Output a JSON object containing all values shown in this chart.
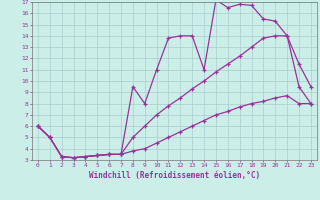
{
  "xlabel": "Windchill (Refroidissement éolien,°C)",
  "bg_color": "#cceee8",
  "line_color": "#993399",
  "grid_color": "#aacccc",
  "xlim": [
    -0.5,
    23.5
  ],
  "ylim": [
    3,
    17
  ],
  "xticks": [
    0,
    1,
    2,
    3,
    4,
    5,
    6,
    7,
    8,
    9,
    10,
    11,
    12,
    13,
    14,
    15,
    16,
    17,
    18,
    19,
    20,
    21,
    22,
    23
  ],
  "yticks": [
    3,
    4,
    5,
    6,
    7,
    8,
    9,
    10,
    11,
    12,
    13,
    14,
    15,
    16,
    17
  ],
  "top_x": [
    0,
    1,
    2,
    3,
    4,
    5,
    6,
    7,
    8,
    9,
    10,
    11,
    12,
    13,
    14,
    15,
    16,
    17,
    18,
    19,
    20,
    21,
    22,
    23
  ],
  "top_y": [
    6.0,
    5.0,
    3.3,
    3.2,
    3.3,
    3.4,
    3.5,
    3.5,
    9.5,
    8.0,
    11.0,
    13.8,
    14.0,
    14.0,
    11.0,
    17.2,
    16.5,
    16.8,
    16.7,
    15.5,
    15.3,
    14.0,
    11.5,
    9.5
  ],
  "mid_x": [
    0,
    1,
    2,
    3,
    4,
    5,
    6,
    7,
    8,
    9,
    10,
    11,
    12,
    13,
    14,
    15,
    16,
    17,
    18,
    19,
    20,
    21,
    22,
    23
  ],
  "mid_y": [
    6.0,
    5.0,
    3.3,
    3.2,
    3.3,
    3.4,
    3.5,
    3.5,
    5.0,
    6.0,
    7.0,
    7.8,
    8.5,
    9.3,
    10.0,
    10.8,
    11.5,
    12.2,
    13.0,
    13.8,
    14.0,
    14.0,
    9.5,
    8.0
  ],
  "bot_x": [
    0,
    1,
    2,
    3,
    4,
    5,
    6,
    7,
    8,
    9,
    10,
    11,
    12,
    13,
    14,
    15,
    16,
    17,
    18,
    19,
    20,
    21,
    22,
    23
  ],
  "bot_y": [
    6.0,
    5.0,
    3.3,
    3.2,
    3.3,
    3.4,
    3.5,
    3.5,
    3.8,
    4.0,
    4.5,
    5.0,
    5.5,
    6.0,
    6.5,
    7.0,
    7.3,
    7.7,
    8.0,
    8.2,
    8.5,
    8.7,
    8.0,
    8.0
  ]
}
